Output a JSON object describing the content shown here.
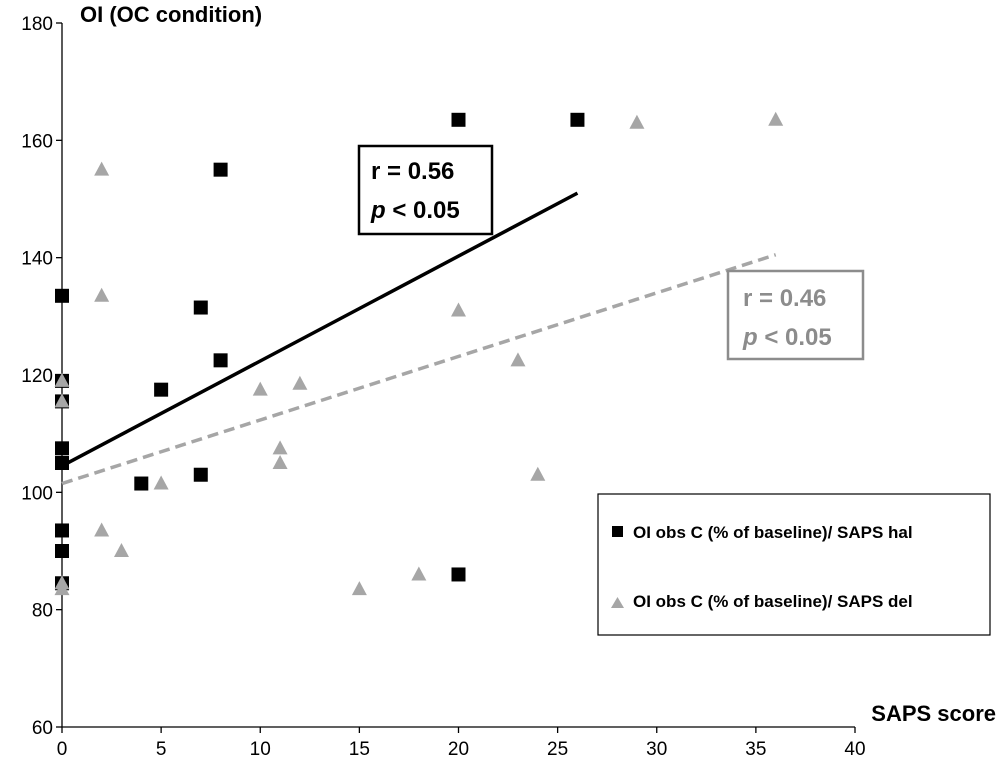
{
  "chart_data": {
    "type": "scatter",
    "title": "",
    "ylabel": "OI (OC condition)",
    "xlabel": "SAPS score",
    "xlim": [
      0,
      40
    ],
    "ylim": [
      60,
      180
    ],
    "xticks": [
      0,
      5,
      10,
      15,
      20,
      25,
      30,
      35,
      40
    ],
    "yticks": [
      60,
      80,
      100,
      120,
      140,
      160,
      180
    ],
    "series": [
      {
        "name": "OI obs C (% of baseline)/ SAPS hal",
        "marker": "square",
        "color": "#000000",
        "points": [
          [
            0,
            133.5
          ],
          [
            0,
            119
          ],
          [
            0,
            115.5
          ],
          [
            0,
            107.5
          ],
          [
            0,
            105
          ],
          [
            0,
            93.5
          ],
          [
            0,
            90
          ],
          [
            0,
            84.5
          ],
          [
            4,
            101.5
          ],
          [
            5,
            117.5
          ],
          [
            7,
            131.5
          ],
          [
            7,
            103
          ],
          [
            8,
            155
          ],
          [
            8,
            122.5
          ],
          [
            20,
            163.5
          ],
          [
            20,
            86
          ],
          [
            26,
            163.5
          ]
        ],
        "trendline": {
          "x": [
            0,
            26
          ],
          "y": [
            104.5,
            151
          ],
          "style": "solid",
          "color": "#000000"
        },
        "stats": {
          "r": "r = 0.56",
          "p_italic": "p",
          "p_rest": " < 0.05"
        }
      },
      {
        "name": "OI obs C (% of baseline)/ SAPS del",
        "marker": "triangle",
        "color": "#a6a6a6",
        "points": [
          [
            0,
            119
          ],
          [
            0,
            115.5
          ],
          [
            0,
            84.5
          ],
          [
            0,
            83.5
          ],
          [
            2,
            155
          ],
          [
            2,
            133.5
          ],
          [
            2,
            93.5
          ],
          [
            3,
            90
          ],
          [
            5,
            101.5
          ],
          [
            10,
            117.5
          ],
          [
            11,
            107.5
          ],
          [
            11,
            105
          ],
          [
            12,
            118.5
          ],
          [
            15,
            83.5
          ],
          [
            18,
            86
          ],
          [
            20,
            131
          ],
          [
            23,
            122.5
          ],
          [
            24,
            103
          ],
          [
            29,
            163
          ],
          [
            36,
            163.5
          ]
        ],
        "trendline": {
          "x": [
            0,
            36
          ],
          "y": [
            101.5,
            140.5
          ],
          "style": "dashed",
          "color": "#a6a6a6"
        },
        "stats": {
          "r": "r = 0.46",
          "p_italic": "p",
          "p_rest": " < 0.05"
        }
      }
    ]
  }
}
